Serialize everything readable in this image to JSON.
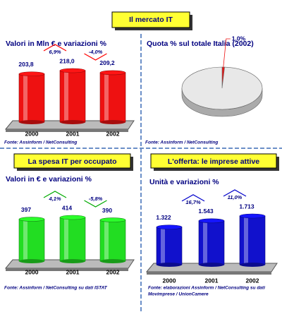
{
  "title": "Il mercato IT",
  "chart_data": [
    {
      "type": "bar",
      "title": "Valori in Mln € e variazioni %",
      "categories": [
        "2000",
        "2001",
        "2002"
      ],
      "values": [
        203.8,
        218.0,
        209.2
      ],
      "value_labels": [
        "203,8",
        "218,0",
        "209,2"
      ],
      "changes": [
        6.9,
        -4.0
      ],
      "change_labels": [
        "6,9%",
        "-4,0%"
      ],
      "change_colors": [
        "#ff0000",
        "#ff0000"
      ],
      "color": "#ee1111",
      "source": [
        "Fonte: Assinform / NetConsulting"
      ]
    },
    {
      "type": "pie",
      "title": "Quota % sul totale Italia (2002)",
      "values": [
        1.0,
        99.0
      ],
      "value_labels": [
        "1,0%",
        null
      ],
      "colors": [
        "#ee1111",
        "#e8e8e8"
      ],
      "source": [
        "Fonte: Assinform / NetConsulting"
      ]
    },
    {
      "type": "bar",
      "section": "La spesa IT per occupato",
      "title": "Valori in € e variazioni %",
      "categories": [
        "2000",
        "2001",
        "2002"
      ],
      "values": [
        397,
        414,
        390
      ],
      "value_labels": [
        "397",
        "414",
        "390"
      ],
      "changes": [
        4.1,
        -5.8
      ],
      "change_labels": [
        "4,1%",
        "-5,8%"
      ],
      "change_colors": [
        "#00aa00",
        "#00aa00"
      ],
      "color": "#22dd22",
      "source": [
        "Fonte: Assinform / NetConsulting su dati ISTAT"
      ]
    },
    {
      "type": "bar",
      "section": "L'offerta: le imprese attive",
      "title": "Unità e variazioni %",
      "categories": [
        "2000",
        "2001",
        "2002"
      ],
      "values": [
        1322,
        1543,
        1713
      ],
      "value_labels": [
        "1.322",
        "1.543",
        "1.713"
      ],
      "changes": [
        16.7,
        11.0
      ],
      "change_labels": [
        "16,7%",
        "11,0%"
      ],
      "change_colors": [
        "#0000cc",
        "#0000cc"
      ],
      "color": "#1111cc",
      "source": [
        "Fonte: elaborazioni Assinform / NetConsulting su dati",
        "Movimprese / UnionCamere"
      ]
    }
  ]
}
